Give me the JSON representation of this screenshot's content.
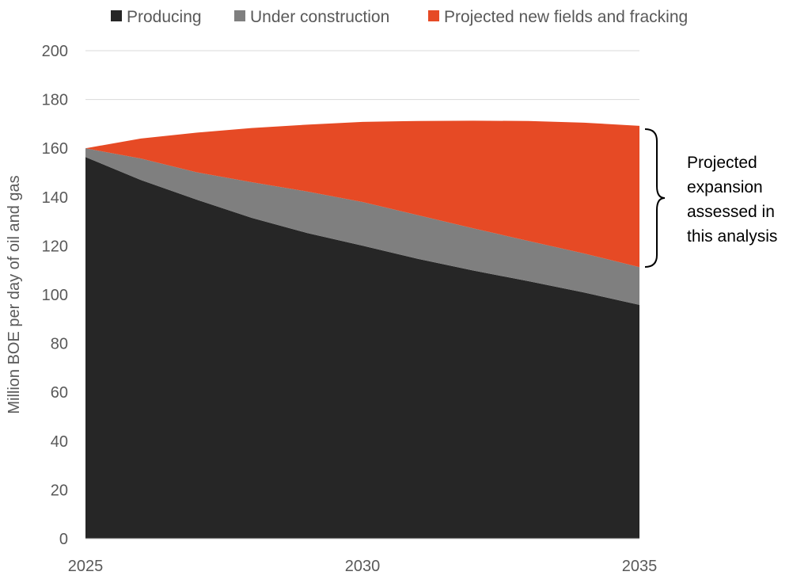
{
  "chart_data": {
    "type": "area",
    "stacked": true,
    "title": "",
    "xlabel": "",
    "ylabel": "Million BOE per day of oil and gas",
    "x": [
      2025,
      2026,
      2027,
      2028,
      2029,
      2030,
      2031,
      2032,
      2033,
      2034,
      2035
    ],
    "x_ticks": [
      "2025",
      "2030",
      "2035"
    ],
    "y_ticks": [
      "0",
      "20",
      "40",
      "60",
      "80",
      "100",
      "120",
      "140",
      "160",
      "180",
      "200"
    ],
    "ylim": [
      0,
      200
    ],
    "grid": true,
    "legend_position": "top",
    "series": [
      {
        "name": "Producing",
        "color": "#262626",
        "values": [
          156.4,
          147,
          139,
          131.5,
          125.3,
          120.1,
          114.7,
          109.9,
          105.5,
          100.9,
          95.8
        ]
      },
      {
        "name": "Under construction",
        "color": "#7f7f7f",
        "values": [
          3.6,
          8.8,
          11.2,
          14.6,
          17,
          17.9,
          17.9,
          17.3,
          16.5,
          16,
          15.5
        ]
      },
      {
        "name": "Projected new fields and fracking",
        "color": "#e64a25",
        "values": [
          0,
          8.2,
          16.2,
          22.2,
          27.4,
          32.8,
          38.6,
          44.1,
          49.2,
          53.6,
          57.9
        ]
      }
    ],
    "annotation": {
      "lines": [
        "Projected",
        "expansion",
        "assessed in",
        "this  analysis"
      ]
    }
  }
}
